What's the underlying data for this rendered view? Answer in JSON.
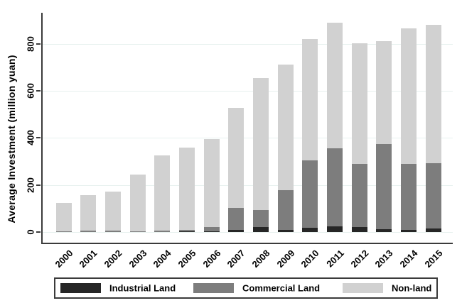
{
  "chart_data": {
    "type": "bar",
    "stacked": true,
    "title": "",
    "xlabel": "",
    "ylabel": "Average Investment (million yuan)",
    "categories": [
      "2000",
      "2001",
      "2002",
      "2003",
      "2004",
      "2005",
      "2006",
      "2007",
      "2008",
      "2009",
      "2010",
      "2011",
      "2012",
      "2013",
      "2014",
      "2015"
    ],
    "series": [
      {
        "name": "Industrial Land",
        "color": "#262626",
        "values": [
          0,
          0,
          0,
          0,
          0,
          2,
          3,
          10,
          20,
          10,
          18,
          25,
          22,
          13,
          9,
          15
        ]
      },
      {
        "name": "Commercial Land",
        "color": "#7d7d7d",
        "values": [
          3,
          6,
          6,
          3,
          6,
          6,
          17,
          91,
          74,
          167,
          287,
          330,
          268,
          362,
          281,
          278
        ]
      },
      {
        "name": "Non-land",
        "color": "#d1d1d1",
        "values": [
          122,
          152,
          166,
          242,
          319,
          352,
          376,
          427,
          561,
          535,
          515,
          533,
          512,
          435,
          575,
          587
        ]
      }
    ],
    "totals": [
      125,
      158,
      172,
      245,
      325,
      360,
      396,
      528,
      655,
      712,
      820,
      888,
      802,
      810,
      865,
      880
    ],
    "ylim": [
      0,
      900
    ],
    "yticks": [
      0,
      200,
      400,
      600,
      800
    ],
    "grid": true,
    "legend_position": "bottom",
    "axis_color": "#3b3b3b",
    "gridline_color": "#e7f1ef"
  }
}
